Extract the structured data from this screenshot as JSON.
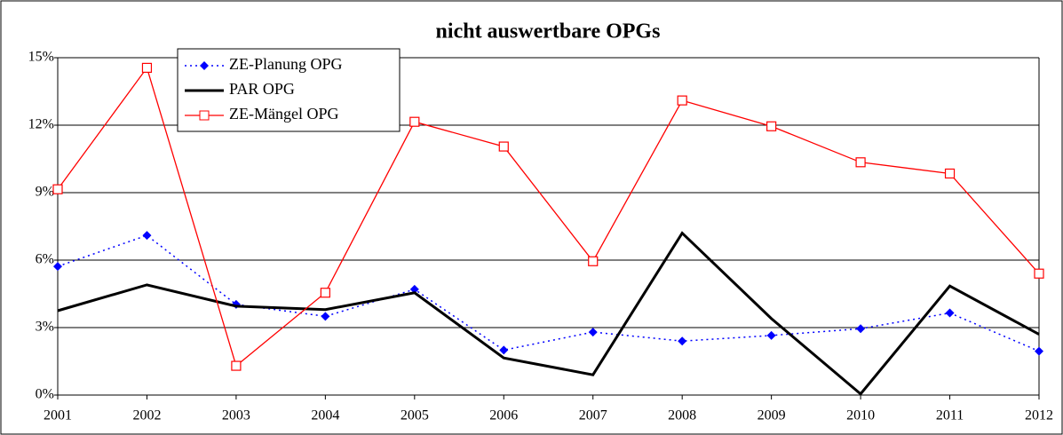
{
  "chart_data": {
    "type": "line",
    "title": "nicht auswertbare OPGs",
    "categories": [
      "2001",
      "2002",
      "2003",
      "2004",
      "2005",
      "2006",
      "2007",
      "2008",
      "2009",
      "2010",
      "2011",
      "2012"
    ],
    "series": [
      {
        "name": "ZE-Planung OPG",
        "color": "#0000ff",
        "style": "dotted",
        "marker": "diamond",
        "values": [
          5.72,
          7.1,
          4.03,
          3.5,
          4.7,
          2.0,
          2.8,
          2.4,
          2.65,
          2.95,
          3.65,
          1.95
        ]
      },
      {
        "name": "PAR OPG",
        "color": "#000000",
        "style": "solid",
        "marker": "none",
        "values": [
          3.75,
          4.9,
          3.95,
          3.8,
          4.55,
          1.65,
          0.9,
          7.2,
          3.4,
          0.05,
          4.85,
          2.7
        ]
      },
      {
        "name": "ZE-Mängel OPG",
        "color": "#ff0000",
        "style": "solid",
        "marker": "square",
        "values": [
          9.15,
          14.55,
          1.3,
          4.55,
          12.15,
          11.05,
          5.95,
          13.1,
          11.95,
          10.35,
          9.85,
          5.4
        ]
      }
    ],
    "ylim": [
      0,
      15
    ],
    "yticks": [
      {
        "value": 0,
        "label": "0%"
      },
      {
        "value": 3,
        "label": "3%"
      },
      {
        "value": 6,
        "label": "6%"
      },
      {
        "value": 9,
        "label": "9%"
      },
      {
        "value": 12,
        "label": "12%"
      },
      {
        "value": 15,
        "label": "15%"
      }
    ],
    "grid": true,
    "legend": "upper left"
  }
}
